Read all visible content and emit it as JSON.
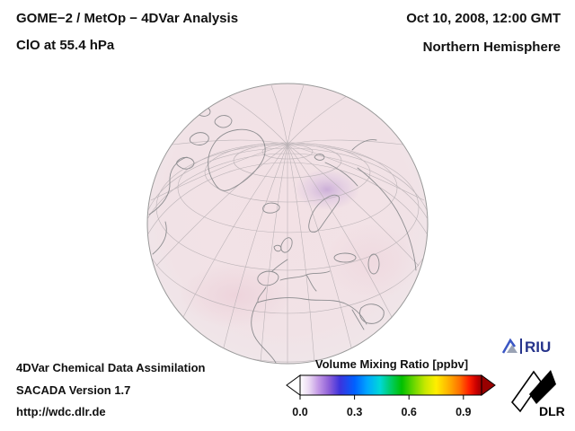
{
  "header": {
    "title": "GOME−2 / MetOp − 4DVar Analysis",
    "subtitle": "ClO at 55.4 hPa",
    "datetime": "Oct 10, 2008, 12:00 GMT",
    "region": "Northern Hemisphere"
  },
  "footer": {
    "line1": "4DVar Chemical Data Assimilation",
    "line2": "SACADA Version 1.7",
    "line3": "http://wdc.dlr.de"
  },
  "colorbar": {
    "title": "Volume Mixing Ratio [ppbv]",
    "ticks": [
      "0.0",
      "0.3",
      "0.6",
      "0.9"
    ],
    "tick_values": [
      0.0,
      0.3,
      0.6,
      0.9
    ],
    "range": [
      0.0,
      1.0
    ],
    "gradient": [
      [
        0.0,
        "#ffffff"
      ],
      [
        0.05,
        "#ead9f3"
      ],
      [
        0.1,
        "#c49ae6"
      ],
      [
        0.16,
        "#8e5fd8"
      ],
      [
        0.22,
        "#3c33dd"
      ],
      [
        0.3,
        "#0060ff"
      ],
      [
        0.37,
        "#00a6ff"
      ],
      [
        0.44,
        "#00d8d8"
      ],
      [
        0.5,
        "#00cc66"
      ],
      [
        0.56,
        "#00c000"
      ],
      [
        0.63,
        "#6fd800"
      ],
      [
        0.69,
        "#c8e800"
      ],
      [
        0.75,
        "#ffee00"
      ],
      [
        0.82,
        "#ffb000"
      ],
      [
        0.88,
        "#ff7000"
      ],
      [
        0.93,
        "#ff2000"
      ],
      [
        0.97,
        "#cc0000"
      ],
      [
        1.0,
        "#990000"
      ]
    ]
  },
  "map": {
    "base_color": "#f2e3e7",
    "anomaly_color": "#c7a9d6",
    "graticule_color": "#b5aeb2",
    "coast_color": "#8d8d90"
  },
  "logos": {
    "riu": "RIU",
    "dlr": "DLR"
  }
}
